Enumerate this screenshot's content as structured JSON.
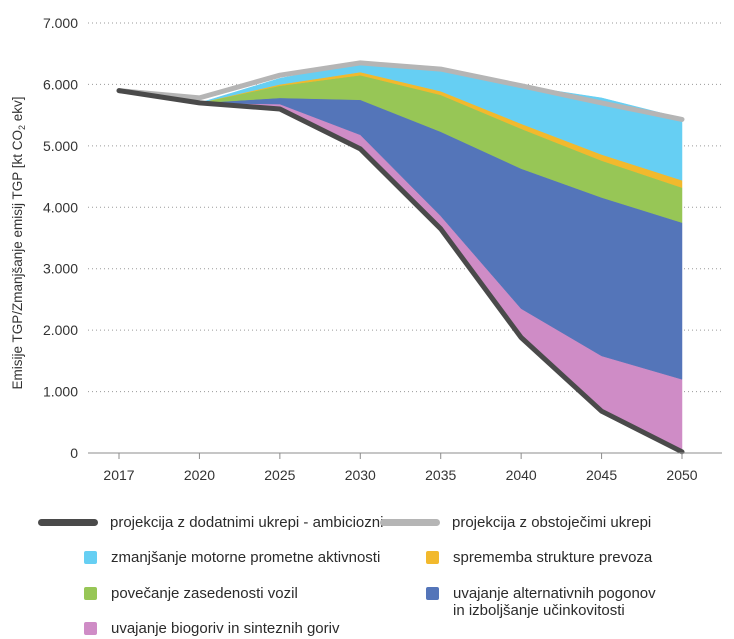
{
  "chart_data": {
    "type": "area",
    "ylabel": "Emisije TGP/Zmanjšanje emisij TGP [kt CO₂ ekv]",
    "ylabel_main": "Emisije TGP/Zmanjšanje emisij TGP [kt CO",
    "ylabel_sub": "2",
    "ylabel_tail": " ekv]",
    "x": [
      "2017",
      "2020",
      "2025",
      "2030",
      "2035",
      "2040",
      "2045",
      "2050"
    ],
    "ylim": [
      0,
      7000
    ],
    "yticks": [
      0,
      1000,
      2000,
      3000,
      4000,
      5000,
      6000,
      7000
    ],
    "ytick_labels": [
      "0",
      "1.000",
      "2.000",
      "3.000",
      "4.000",
      "5.000",
      "6.000",
      "7.000"
    ],
    "grid": "horizontal dotted",
    "series": [
      {
        "name": "projekcija z dodatnimi ukrepi - ambiciozni",
        "kind": "line",
        "color": "#4a4a4a",
        "values": [
          5900,
          5700,
          5600,
          4950,
          3650,
          1880,
          680,
          20
        ]
      },
      {
        "name": "projekcija z obstoječimi ukrepi",
        "kind": "line",
        "color": "#b5b5b5",
        "values": [
          5900,
          5780,
          6150,
          6350,
          6250,
          5980,
          5700,
          5430
        ]
      },
      {
        "name": "uvajanje biogoriv in sinteznih goriv",
        "kind": "area",
        "color": "#cf8cc6",
        "values": [
          0,
          0,
          80,
          230,
          210,
          470,
          900,
          1180
        ]
      },
      {
        "name": "uvajanje alternativnih pogonov\nin izboljšanje učinkovitosti",
        "kind": "area",
        "color": "#5475b9",
        "values": [
          0,
          0,
          100,
          570,
          1370,
          2280,
          2580,
          2550
        ]
      },
      {
        "name": "povečanje zasedenosti vozil",
        "kind": "area",
        "color": "#97c656",
        "values": [
          0,
          0,
          200,
          400,
          600,
          650,
          600,
          570
        ]
      },
      {
        "name": "sprememba strukture prevoza",
        "kind": "area",
        "color": "#f2b92d",
        "values": [
          0,
          0,
          20,
          50,
          60,
          80,
          100,
          120
        ]
      },
      {
        "name": "zmanjšanje motorne prometne aktivnosti",
        "kind": "area",
        "color": "#66cff3",
        "values": [
          0,
          0,
          100,
          150,
          360,
          620,
          920,
          1010
        ]
      }
    ]
  },
  "legend": [
    {
      "label": "projekcija z dodatnimi ukrepi - ambiciozni",
      "type": "line",
      "color": "#4a4a4a"
    },
    {
      "label": "projekcija z obstoječimi ukrepi",
      "type": "line",
      "color": "#b5b5b5"
    },
    {
      "label": "zmanjšanje motorne prometne aktivnosti",
      "type": "box",
      "color": "#66cff3"
    },
    {
      "label": "sprememba strukture prevoza",
      "type": "box",
      "color": "#f2b92d"
    },
    {
      "label": "povečanje zasedenosti vozil",
      "type": "box",
      "color": "#97c656"
    },
    {
      "label": "uvajanje alternativnih pogonov\nin izboljšanje učinkovitosti",
      "type": "box",
      "color": "#5475b9"
    },
    {
      "label": "uvajanje biogoriv in sinteznih goriv",
      "type": "box",
      "color": "#cf8cc6"
    }
  ]
}
